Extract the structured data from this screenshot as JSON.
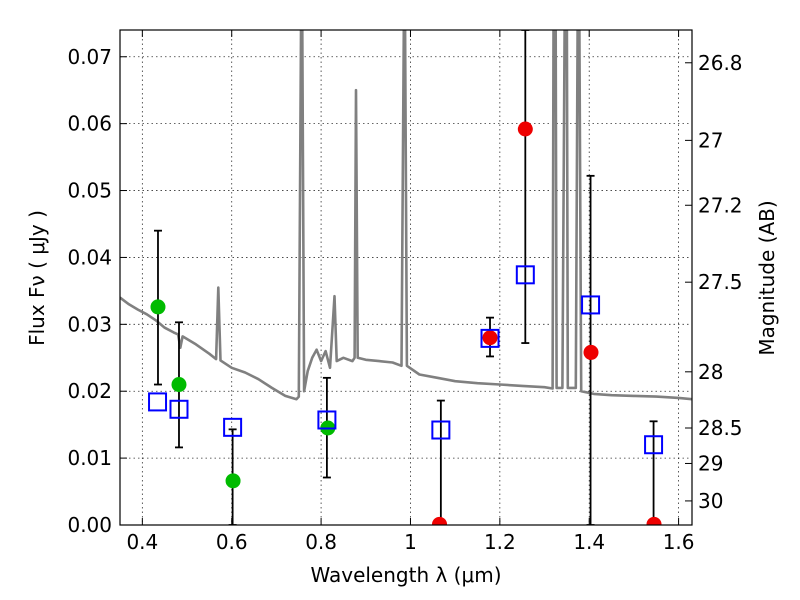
{
  "chart_data": {
    "type": "scatter",
    "xlabel": "Wavelength  λ (μm)",
    "ylabel": "Flux  Fν  ( μJy )",
    "y2label": "Magnitude (AB)",
    "xlim": [
      0.35,
      1.63
    ],
    "ylim": [
      0.0,
      0.074
    ],
    "grid": true,
    "xticks": [
      {
        "value": 0.4,
        "label": "0.4"
      },
      {
        "value": 0.6,
        "label": "0.6"
      },
      {
        "value": 0.8,
        "label": "0.8"
      },
      {
        "value": 1.0,
        "label": "1"
      },
      {
        "value": 1.2,
        "label": "1.2"
      },
      {
        "value": 1.4,
        "label": "1.4"
      },
      {
        "value": 1.6,
        "label": "1.6"
      }
    ],
    "yticks": [
      {
        "value": 0.0,
        "label": "0.00"
      },
      {
        "value": 0.01,
        "label": "0.01"
      },
      {
        "value": 0.02,
        "label": "0.02"
      },
      {
        "value": 0.03,
        "label": "0.03"
      },
      {
        "value": 0.04,
        "label": "0.04"
      },
      {
        "value": 0.05,
        "label": "0.05"
      },
      {
        "value": 0.06,
        "label": "0.06"
      },
      {
        "value": 0.07,
        "label": "0.07"
      }
    ],
    "y2ticks": [
      {
        "flux": 0.0691,
        "label": "26.8"
      },
      {
        "flux": 0.0575,
        "label": "27"
      },
      {
        "flux": 0.0478,
        "label": "27.2"
      },
      {
        "flux": 0.0363,
        "label": "27.5"
      },
      {
        "flux": 0.0229,
        "label": "28"
      },
      {
        "flux": 0.0145,
        "label": "28.5"
      },
      {
        "flux": 0.0092,
        "label": "29"
      },
      {
        "flux": 0.0036,
        "label": "30"
      }
    ],
    "model_spectrum": {
      "color": "#808080",
      "points": [
        [
          0.35,
          0.034
        ],
        [
          0.37,
          0.033
        ],
        [
          0.39,
          0.0322
        ],
        [
          0.41,
          0.0315
        ],
        [
          0.43,
          0.0306
        ],
        [
          0.45,
          0.0295
        ],
        [
          0.47,
          0.0288
        ],
        [
          0.48,
          0.0285
        ],
        [
          0.485,
          0.0265
        ],
        [
          0.49,
          0.0282
        ],
        [
          0.52,
          0.027
        ],
        [
          0.55,
          0.0256
        ],
        [
          0.565,
          0.0248
        ],
        [
          0.57,
          0.0355
        ],
        [
          0.575,
          0.0246
        ],
        [
          0.6,
          0.0235
        ],
        [
          0.63,
          0.0228
        ],
        [
          0.66,
          0.0218
        ],
        [
          0.69,
          0.0205
        ],
        [
          0.72,
          0.0193
        ],
        [
          0.745,
          0.0188
        ],
        [
          0.75,
          0.0192
        ],
        [
          0.755,
          0.074
        ],
        [
          0.758,
          0.074
        ],
        [
          0.762,
          0.02
        ],
        [
          0.77,
          0.023
        ],
        [
          0.78,
          0.025
        ],
        [
          0.79,
          0.0262
        ],
        [
          0.8,
          0.0245
        ],
        [
          0.81,
          0.026
        ],
        [
          0.82,
          0.0235
        ],
        [
          0.83,
          0.0342
        ],
        [
          0.835,
          0.0245
        ],
        [
          0.85,
          0.025
        ],
        [
          0.87,
          0.0245
        ],
        [
          0.875,
          0.025
        ],
        [
          0.878,
          0.065
        ],
        [
          0.882,
          0.025
        ],
        [
          0.9,
          0.0247
        ],
        [
          0.93,
          0.0245
        ],
        [
          0.96,
          0.0243
        ],
        [
          0.98,
          0.0238
        ],
        [
          0.985,
          0.074
        ],
        [
          0.988,
          0.074
        ],
        [
          0.992,
          0.0238
        ],
        [
          1.02,
          0.0225
        ],
        [
          1.06,
          0.022
        ],
        [
          1.1,
          0.0215
        ],
        [
          1.15,
          0.0212
        ],
        [
          1.2,
          0.021
        ],
        [
          1.25,
          0.0208
        ],
        [
          1.3,
          0.0206
        ],
        [
          1.318,
          0.0204
        ],
        [
          1.32,
          0.074
        ],
        [
          1.325,
          0.074
        ],
        [
          1.327,
          0.0205
        ],
        [
          1.34,
          0.0205
        ],
        [
          1.345,
          0.074
        ],
        [
          1.35,
          0.074
        ],
        [
          1.352,
          0.0205
        ],
        [
          1.37,
          0.0205
        ],
        [
          1.374,
          0.074
        ],
        [
          1.378,
          0.074
        ],
        [
          1.382,
          0.02
        ],
        [
          1.41,
          0.0196
        ],
        [
          1.45,
          0.0194
        ],
        [
          1.5,
          0.0193
        ],
        [
          1.55,
          0.0192
        ],
        [
          1.6,
          0.019
        ],
        [
          1.63,
          0.0188
        ]
      ]
    },
    "series": [
      {
        "name": "green measurements",
        "marker": "circle",
        "color": "#00bb00",
        "points": [
          {
            "x": 0.435,
            "y": 0.0326
          },
          {
            "x": 0.482,
            "y": 0.021
          },
          {
            "x": 0.603,
            "y": 0.0066
          },
          {
            "x": 0.815,
            "y": 0.0145
          }
        ]
      },
      {
        "name": "red measurements",
        "marker": "circle",
        "color": "#ee0000",
        "points": [
          {
            "x": 1.065,
            "y": 0.0001
          },
          {
            "x": 1.178,
            "y": 0.028
          },
          {
            "x": 1.257,
            "y": 0.0592
          },
          {
            "x": 1.404,
            "y": 0.0258
          },
          {
            "x": 1.545,
            "y": 0.0001
          }
        ]
      },
      {
        "name": "blue squares with error bars",
        "marker": "square",
        "color": "#0000ff",
        "points": [
          {
            "x": 0.434,
            "y": 0.0184,
            "yerr_low": null,
            "yerr_high": null
          },
          {
            "x": 0.482,
            "y": 0.0173,
            "yerr_low": 0.0116,
            "yerr_high": 0.0303
          },
          {
            "x": 0.602,
            "y": 0.0146,
            "yerr_low": 0.0,
            "yerr_high": 0.0143
          },
          {
            "x": 0.813,
            "y": 0.0157,
            "yerr_low": 0.0071,
            "yerr_high": 0.022
          },
          {
            "x": 1.068,
            "y": 0.0142,
            "yerr_low": 0.0,
            "yerr_high": 0.0186
          },
          {
            "x": 1.178,
            "y": 0.0279,
            "yerr_low": 0.0252,
            "yerr_high": 0.031
          },
          {
            "x": 1.257,
            "y": 0.0374,
            "yerr_low": 0.0272,
            "yerr_high": 0.074
          },
          {
            "x": 1.403,
            "y": 0.0329,
            "yerr_low": 0.0,
            "yerr_high": 0.0522
          },
          {
            "x": 1.544,
            "y": 0.012,
            "yerr_low": 0.0,
            "yerr_high": 0.0155
          }
        ]
      }
    ],
    "extra_errorbars": [
      {
        "x": 0.435,
        "low": 0.021,
        "high": 0.044
      }
    ]
  }
}
